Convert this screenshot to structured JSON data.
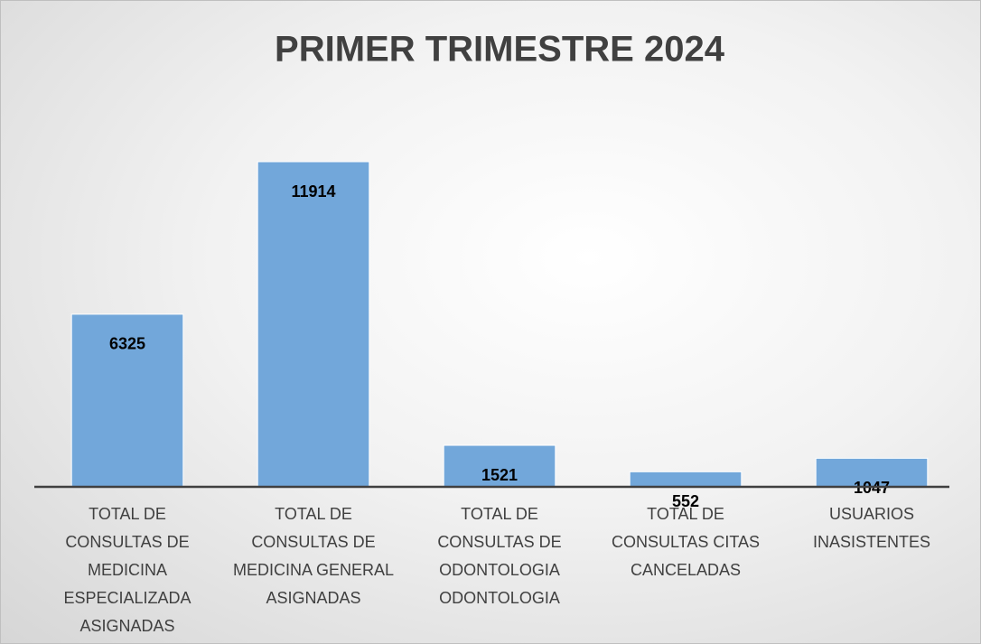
{
  "chart_data": {
    "type": "bar",
    "title": "PRIMER TRIMESTRE 2024",
    "categories": [
      "TOTAL DE CONSULTAS DE MEDICINA ESPECIALIZADA ASIGNADAS",
      "TOTAL DE CONSULTAS DE MEDICINA GENERAL ASIGNADAS",
      "TOTAL DE CONSULTAS DE ODONTOLOGIA ODONTOLOGIA",
      "TOTAL DE CONSULTAS CITAS CANCELADAS",
      "USUARIOS INASISTENTES"
    ],
    "values": [
      6325,
      11914,
      1521,
      552,
      1047
    ],
    "color": "#72a7da",
    "ylim": [
      0,
      14000
    ]
  }
}
